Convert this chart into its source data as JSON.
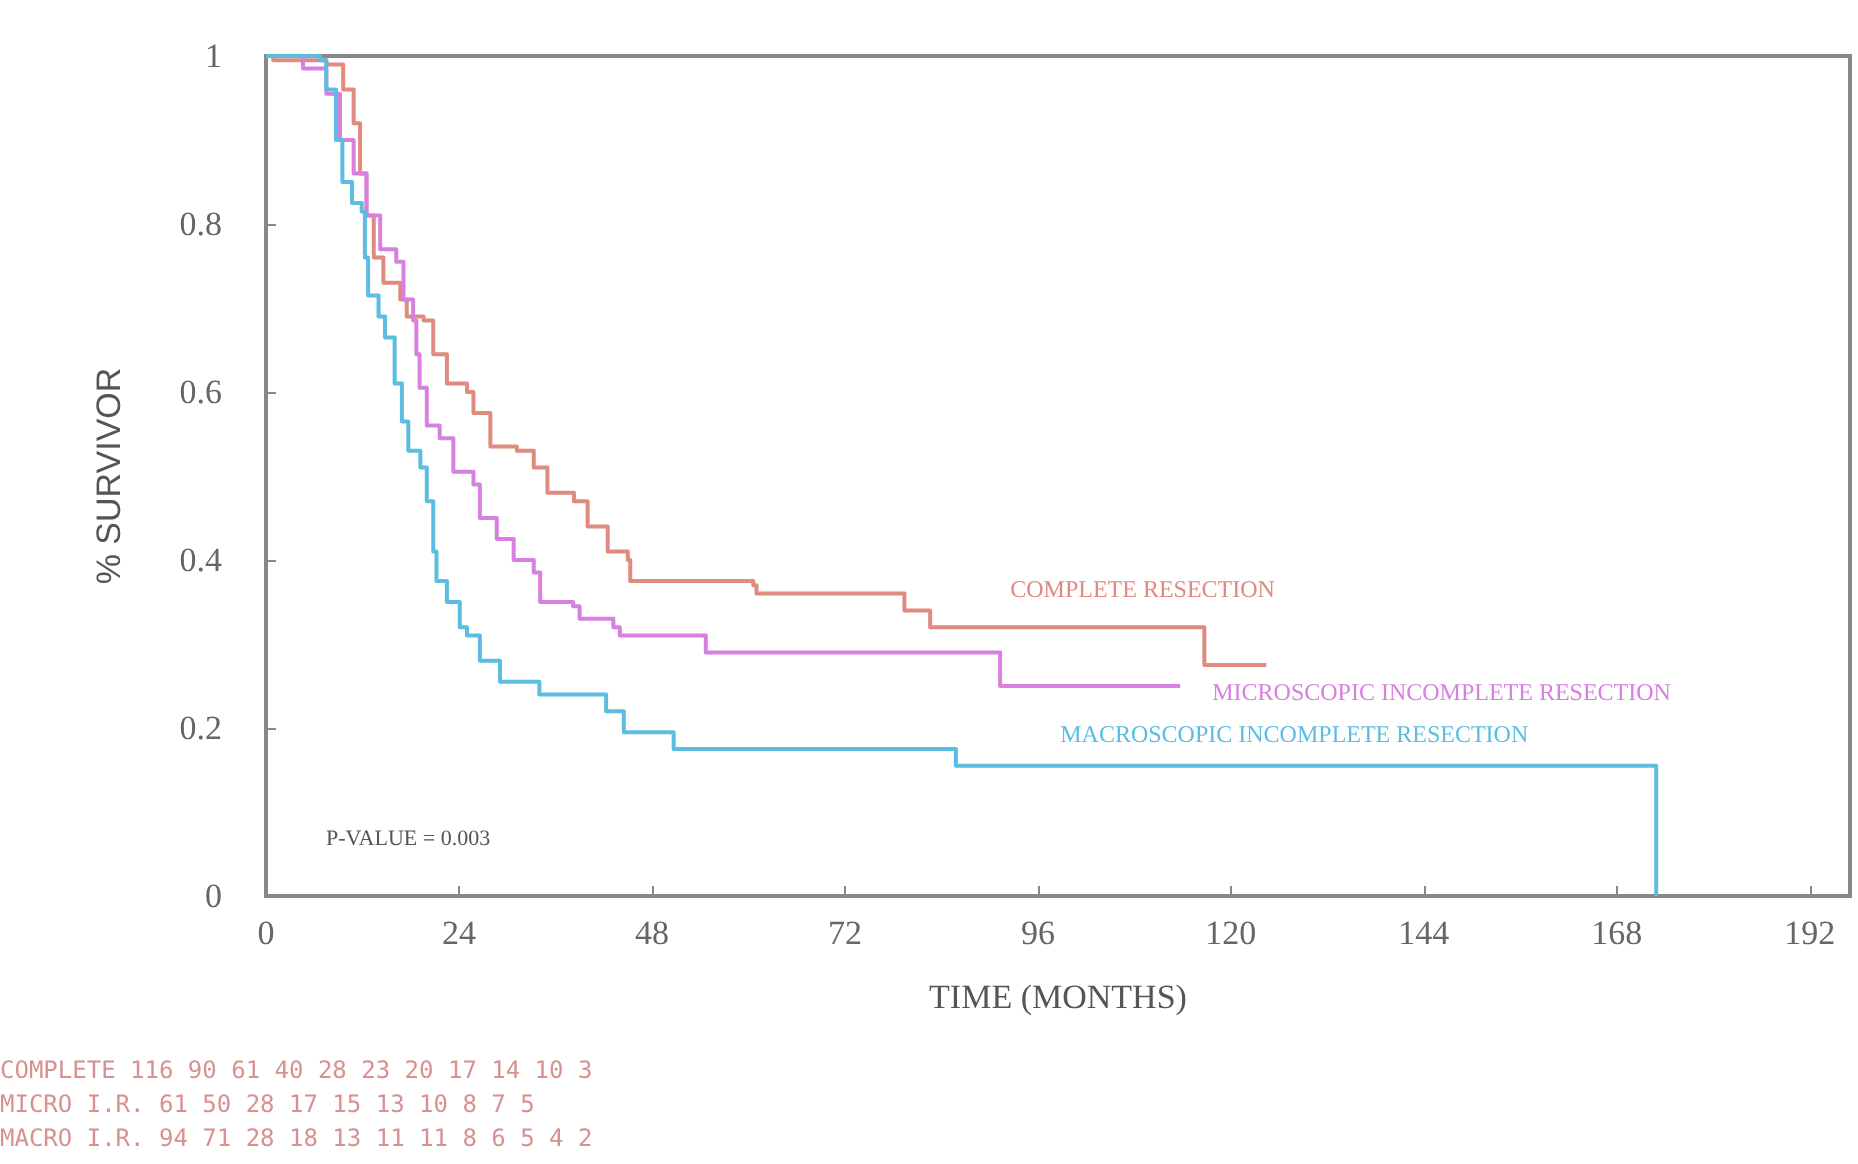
{
  "chart_data": {
    "type": "step",
    "xlabel": "TIME (MONTHS)",
    "ylabel": "% SURVIVOR",
    "xlim": [
      0,
      197
    ],
    "xticks": [
      0,
      24,
      48,
      72,
      96,
      120,
      144,
      168,
      192
    ],
    "ylim": [
      0,
      1
    ],
    "yticks": [
      0,
      0.2,
      0.4,
      0.6,
      0.8,
      1
    ],
    "grid": false,
    "legend": false,
    "marker": "none",
    "line_style": "solid",
    "annotations": [
      "P-VALUE = 0.003",
      "COMPLETE 116 90 61 40 28 23 20 17 14 10 3",
      "MICRO I.R. 61 50 28 17 15 13 10 8 7 5",
      "MACRO I.R. 94 71 28 18 13 11 11 8 6 5 4 2"
    ],
    "series": [
      {
        "name": "COMPLETE RESECTION",
        "color": "#e08a80",
        "x": [
          0,
          0.9,
          7.5,
          9.6,
          10.9,
          11.7,
          12.5,
          13.4,
          14.6,
          16.7,
          17.5,
          19.6,
          20.8,
          22.5,
          25,
          25.8,
          27.9,
          31.2,
          33.3,
          35,
          38.3,
          40,
          42.5,
          45,
          45.3,
          60.6,
          61,
          79.4,
          82.6,
          116.7,
          124.4
        ],
        "values": [
          1,
          0.995,
          0.99,
          0.96,
          0.92,
          0.86,
          0.81,
          0.76,
          0.73,
          0.71,
          0.69,
          0.685,
          0.645,
          0.61,
          0.6,
          0.575,
          0.535,
          0.53,
          0.51,
          0.48,
          0.47,
          0.44,
          0.41,
          0.4,
          0.375,
          0.37,
          0.36,
          0.34,
          0.32,
          0.275,
          0.275
        ]
      },
      {
        "name": "MICROSCOPIC INCOMPLETE RESECTION",
        "color": "#d880e0",
        "x": [
          0,
          4.6,
          7.5,
          9.2,
          10.9,
          12.5,
          14.2,
          16.2,
          17.1,
          18.3,
          18.7,
          19.1,
          20,
          21.6,
          23.3,
          25.8,
          26.6,
          28.7,
          30.8,
          33.3,
          34.1,
          38.2,
          39,
          43.2,
          44,
          54.7,
          91.3,
          113.7
        ],
        "values": [
          1,
          0.985,
          0.955,
          0.9,
          0.86,
          0.81,
          0.77,
          0.755,
          0.71,
          0.685,
          0.645,
          0.605,
          0.56,
          0.545,
          0.505,
          0.49,
          0.45,
          0.425,
          0.4,
          0.385,
          0.35,
          0.345,
          0.33,
          0.32,
          0.31,
          0.29,
          0.25,
          0.25
        ]
      },
      {
        "name": "MACROSCOPIC INCOMPLETE RESECTION",
        "color": "#5bbde0",
        "x": [
          0,
          6.7,
          7.5,
          8.7,
          9.5,
          10.7,
          11.9,
          12.3,
          12.7,
          14,
          14.8,
          16,
          16.9,
          17.7,
          19.2,
          20,
          20.8,
          21.2,
          22.5,
          24.1,
          25,
          26.6,
          29.1,
          34,
          42.3,
          44.5,
          50.7,
          85.8,
          172.9
        ],
        "values": [
          1,
          0.995,
          0.96,
          0.9,
          0.85,
          0.825,
          0.815,
          0.76,
          0.715,
          0.69,
          0.665,
          0.61,
          0.565,
          0.53,
          0.51,
          0.47,
          0.41,
          0.375,
          0.35,
          0.32,
          0.31,
          0.28,
          0.255,
          0.24,
          0.22,
          0.195,
          0.175,
          0.155,
          0
        ]
      }
    ]
  }
}
